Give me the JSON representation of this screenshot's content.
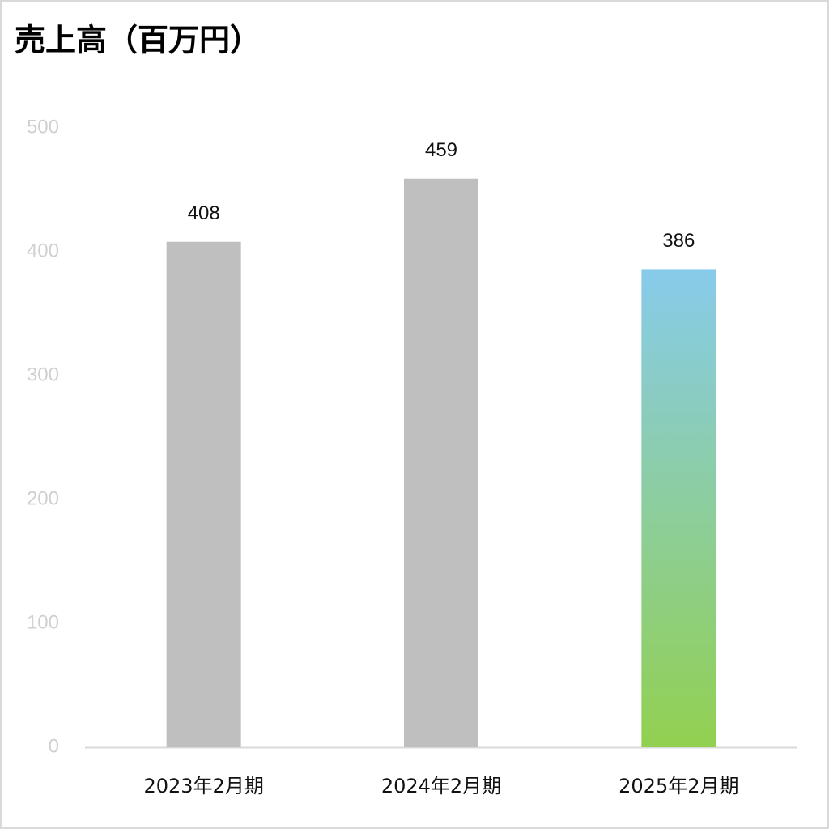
{
  "chart_data": {
    "type": "bar",
    "title": "売上高（百万円）",
    "categories": [
      "2023年2月期",
      "2024年2月期",
      "2025年2月期"
    ],
    "values": [
      408,
      459,
      386
    ],
    "colors": [
      "#bfbfbf",
      "#bfbfbf",
      [
        "#87cbeb",
        "#92d050"
      ]
    ],
    "ylim": [
      0,
      500
    ],
    "yticks": [
      0,
      100,
      200,
      300,
      400,
      500
    ],
    "grid": false
  }
}
